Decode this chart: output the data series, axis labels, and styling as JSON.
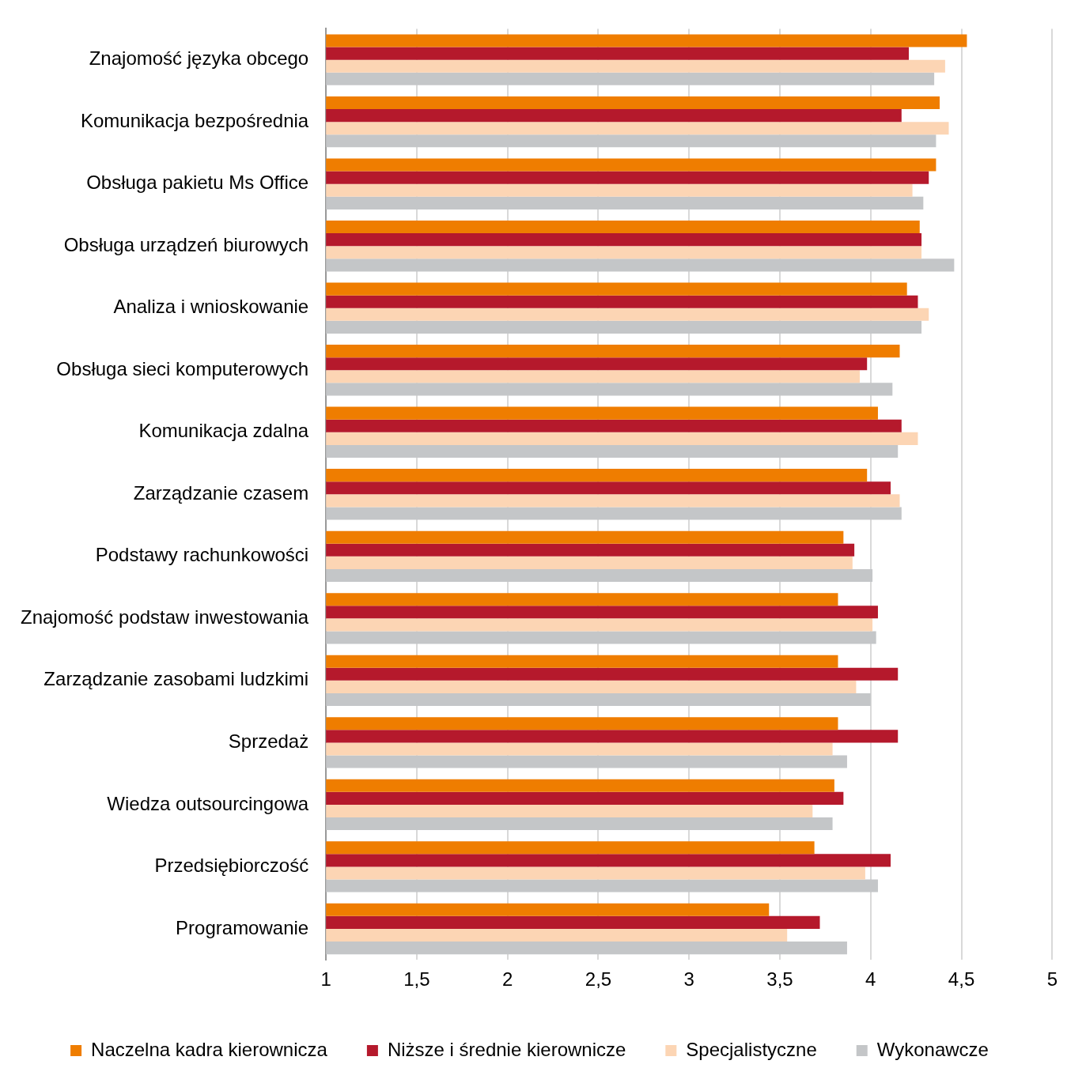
{
  "chart_data": {
    "type": "bar",
    "orientation": "horizontal",
    "categories": [
      "Znajomość języka obcego",
      "Komunikacja bezpośrednia",
      "Obsługa pakietu Ms Office",
      "Obsługa urządzeń biurowych",
      "Analiza i wnioskowanie",
      "Obsługa sieci komputerowych",
      "Komunikacja zdalna",
      "Zarządzanie czasem",
      "Podstawy rachunkowości",
      "Znajomość podstaw inwestowania",
      "Zarządzanie zasobami ludzkimi",
      "Sprzedaż",
      "Wiedza outsourcingowa",
      "Przedsiębiorczość",
      "Programowanie"
    ],
    "series": [
      {
        "name": "Naczelna kadra kierownicza",
        "color": "#ef7d00",
        "values": [
          4.53,
          4.38,
          4.36,
          4.27,
          4.2,
          4.16,
          4.04,
          3.98,
          3.85,
          3.82,
          3.82,
          3.82,
          3.8,
          3.69,
          3.44
        ]
      },
      {
        "name": "Niższe i średnie kierownicze",
        "color": "#b5192c",
        "values": [
          4.21,
          4.17,
          4.32,
          4.28,
          4.26,
          3.98,
          4.17,
          4.11,
          3.91,
          4.04,
          4.15,
          4.15,
          3.85,
          4.11,
          3.72
        ]
      },
      {
        "name": "Specjalistyczne",
        "color": "#fcd5b4",
        "values": [
          4.41,
          4.43,
          4.23,
          4.28,
          4.32,
          3.94,
          4.26,
          4.16,
          3.9,
          4.01,
          3.92,
          3.79,
          3.68,
          3.97,
          3.54
        ]
      },
      {
        "name": "Wykonawcze",
        "color": "#c4c6c8",
        "values": [
          4.35,
          4.36,
          4.29,
          4.46,
          4.28,
          4.12,
          4.15,
          4.17,
          4.01,
          4.03,
          4.0,
          3.87,
          3.79,
          4.04,
          3.87
        ]
      }
    ],
    "xlim": [
      1,
      5
    ],
    "xticks": [
      1,
      {
        "value": 1.5,
        "label": "1,5"
      },
      2,
      {
        "value": 2.5,
        "label": "2,5"
      },
      3,
      {
        "value": 3.5,
        "label": "3,5"
      },
      4,
      {
        "value": 4.5,
        "label": "4,5"
      },
      5
    ],
    "grid": "x",
    "legend": "bottom"
  }
}
